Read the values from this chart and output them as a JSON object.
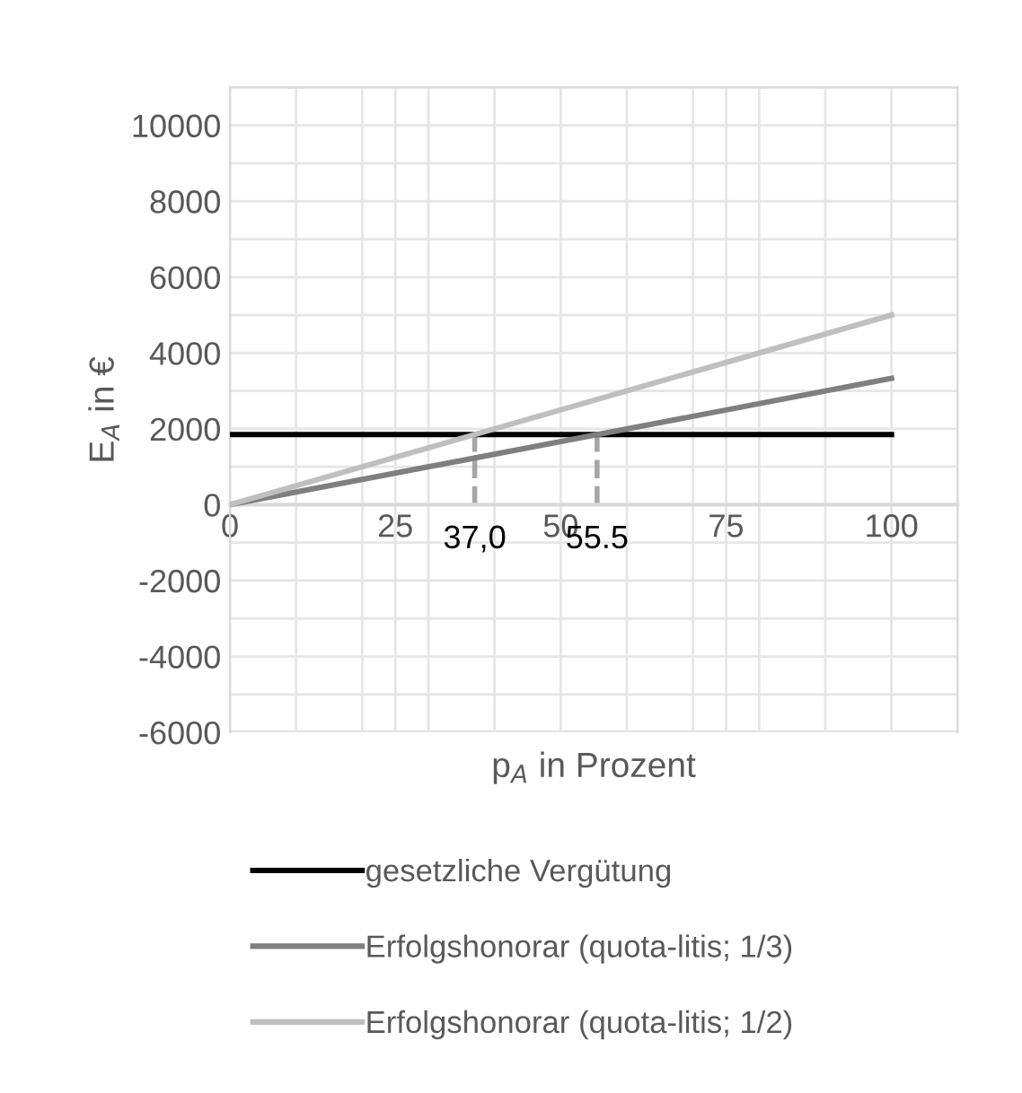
{
  "chart_data": {
    "type": "line",
    "xlabel": "p$_{A}$ in Prozent",
    "ylabel": "E$_{A}$ in €",
    "series": [
      {
        "name": "gesetzliche Vergütung",
        "color": "#000000",
        "values": [
          1850,
          1850
        ]
      },
      {
        "name": "Erfolgshonorar (quota-litis; 1/3)",
        "color": "#7f7f7f",
        "values": [
          0,
          3330
        ]
      },
      {
        "name": "Erfolgshonorar (quota-litis; 1/2)",
        "color": "#bfbfbf",
        "values": [
          0,
          5000
        ]
      }
    ],
    "x": [
      0,
      100
    ],
    "xlim": [
      0,
      110
    ],
    "xticks": [
      0,
      {
        "value": 10,
        "label": null
      },
      {
        "value": 20,
        "label": null
      },
      25,
      {
        "value": 30,
        "label": null
      },
      {
        "value": 40,
        "label": null
      },
      50,
      {
        "value": 60,
        "label": null
      },
      {
        "value": 70,
        "label": null
      },
      75,
      {
        "value": 80,
        "label": null
      },
      {
        "value": 90,
        "label": null
      },
      100,
      {
        "value": 110,
        "label": null
      }
    ],
    "ylim": [
      -6000,
      11000
    ],
    "yticks": [
      -6000,
      {
        "value": -5000,
        "label": null
      },
      -4000,
      {
        "value": -3000,
        "label": null
      },
      -2000,
      {
        "value": -1000,
        "label": null
      },
      0,
      {
        "value": 1000,
        "label": null
      },
      2000,
      {
        "value": 3000,
        "label": null
      },
      4000,
      {
        "value": 5000,
        "label": null
      },
      6000,
      {
        "value": 7000,
        "label": null
      },
      8000,
      {
        "value": 9000,
        "label": null
      },
      10000,
      {
        "value": 11000,
        "label": null
      }
    ],
    "ref_lines": [
      {
        "axis": "x",
        "value": 37.0,
        "label": "37,0",
        "color": "#a6a6a6",
        "line_style": "dashed"
      },
      {
        "axis": "x",
        "value": 55.5,
        "label": "55.5",
        "color": "#a6a6a6",
        "line_style": "dashed"
      }
    ],
    "grid": true,
    "legend": "bottom",
    "line_style": "solid",
    "marker": "none"
  }
}
